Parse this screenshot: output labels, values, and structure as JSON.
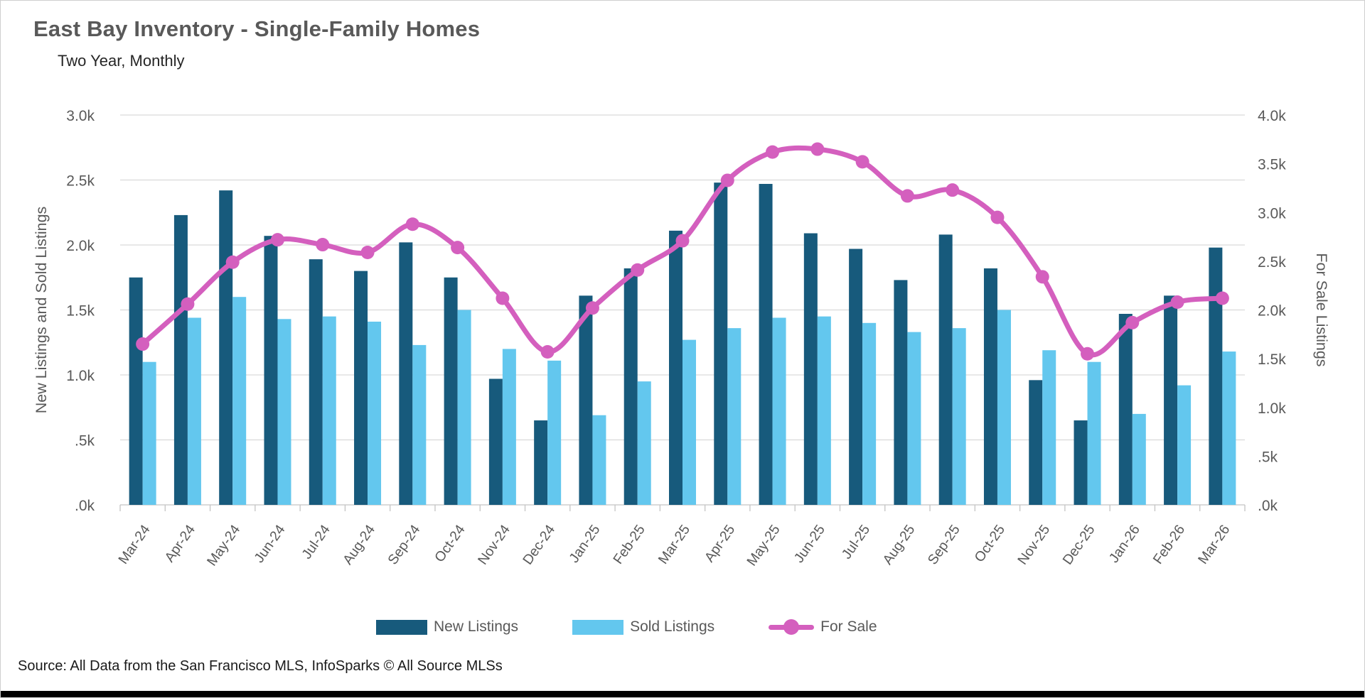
{
  "title": "East Bay Inventory - Single-Family Homes",
  "subtitle": "Two Year, Monthly",
  "source": "Source: All Data from the San Francisco MLS, InfoSparks © All Source MLSs",
  "colors": {
    "new_listings": "#175A7C",
    "sold_listings": "#63C7EE",
    "for_sale": "#D45FBE",
    "grid": "#D9D9D9",
    "axis_line": "#C4C4C4",
    "axis_text": "#595959",
    "title_text": "#595959"
  },
  "legend": {
    "items": [
      {
        "label": "New Listings",
        "color": "#175A7C",
        "type": "bar"
      },
      {
        "label": "Sold Listings",
        "color": "#63C7EE",
        "type": "bar"
      },
      {
        "label": "For Sale",
        "color": "#D45FBE",
        "type": "line"
      }
    ]
  },
  "chart_data": {
    "type": "combo",
    "title": "East Bay Inventory - Single-Family Homes",
    "subtitle": "Two Year, Monthly",
    "grid": true,
    "legend_position": "bottom",
    "categories": [
      "Mar-24",
      "Apr-24",
      "May-24",
      "Jun-24",
      "Jul-24",
      "Aug-24",
      "Sep-24",
      "Oct-24",
      "Nov-24",
      "Dec-24",
      "Jan-25",
      "Feb-25",
      "Mar-25",
      "Apr-25",
      "May-25",
      "Jun-25",
      "Jul-25",
      "Aug-25",
      "Sep-25",
      "Oct-25",
      "Nov-25",
      "Dec-25",
      "Jan-26",
      "Feb-26",
      "Mar-26"
    ],
    "left_axis": {
      "label": "New Listings and Sold Listings",
      "min": 0,
      "max": 3000,
      "tick_labels": [
        ".0k",
        ".5k",
        "1.0k",
        "1.5k",
        "2.0k",
        "2.5k",
        "3.0k"
      ]
    },
    "right_axis": {
      "label": "For Sale Listings",
      "min": 0,
      "max": 4000,
      "tick_labels": [
        ".0k",
        ".5k",
        "1.0k",
        "1.5k",
        "2.0k",
        "2.5k",
        "3.0k",
        "3.5k",
        "4.0k"
      ]
    },
    "series": [
      {
        "name": "New Listings",
        "type": "bar",
        "axis": "left",
        "color": "#175A7C",
        "values": [
          1750,
          2230,
          2420,
          2070,
          1890,
          1800,
          2020,
          1750,
          970,
          650,
          1610,
          1820,
          2110,
          2480,
          2470,
          2090,
          1970,
          1730,
          2080,
          1820,
          960,
          650,
          1470,
          1610,
          1980
        ]
      },
      {
        "name": "Sold Listings",
        "type": "bar",
        "axis": "left",
        "color": "#63C7EE",
        "values": [
          1100,
          1440,
          1600,
          1430,
          1450,
          1410,
          1230,
          1500,
          1200,
          1110,
          690,
          950,
          1270,
          1360,
          1440,
          1450,
          1400,
          1330,
          1360,
          1500,
          1190,
          1100,
          700,
          920,
          1180
        ]
      },
      {
        "name": "For Sale",
        "type": "line",
        "axis": "right",
        "color": "#D45FBE",
        "values": [
          1650,
          2060,
          2490,
          2720,
          2670,
          2590,
          2880,
          2640,
          2120,
          1570,
          2020,
          2410,
          2710,
          3330,
          3620,
          3650,
          3520,
          3170,
          3230,
          2950,
          2340,
          1550,
          1870,
          2080,
          2120
        ]
      }
    ]
  }
}
